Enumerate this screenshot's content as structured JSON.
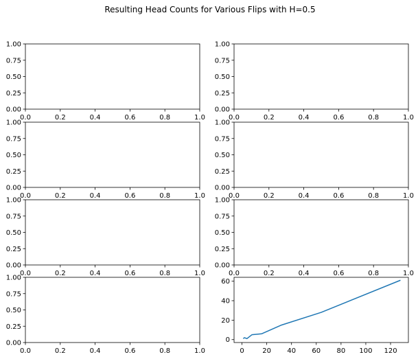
{
  "title": "Resulting Head Counts for Various Flips with H=0.5",
  "line_color": "#1f77b4",
  "chart_data": [
    {
      "type": "line",
      "position": "row1-left",
      "xlim": [
        0,
        1
      ],
      "ylim": [
        0,
        1
      ],
      "xticks": [
        "0.0",
        "0.2",
        "0.4",
        "0.6",
        "0.8",
        "1.0"
      ],
      "yticks": [
        "0.00",
        "0.25",
        "0.50",
        "0.75",
        "1.00"
      ],
      "series": []
    },
    {
      "type": "line",
      "position": "row1-right",
      "xlim": [
        0,
        1
      ],
      "ylim": [
        0,
        1
      ],
      "xticks": [
        "0.0",
        "0.2",
        "0.4",
        "0.6",
        "0.8",
        "1.0"
      ],
      "yticks": [
        "0.00",
        "0.25",
        "0.50",
        "0.75",
        "1.00"
      ],
      "series": []
    },
    {
      "type": "line",
      "position": "row2-left",
      "xlim": [
        0,
        1
      ],
      "ylim": [
        0,
        1
      ],
      "xticks": [
        "0.0",
        "0.2",
        "0.4",
        "0.6",
        "0.8",
        "1.0"
      ],
      "yticks": [
        "0.00",
        "0.25",
        "0.50",
        "0.75",
        "1.00"
      ],
      "series": []
    },
    {
      "type": "line",
      "position": "row2-right",
      "xlim": [
        0,
        1
      ],
      "ylim": [
        0,
        1
      ],
      "xticks": [
        "0.0",
        "0.2",
        "0.4",
        "0.6",
        "0.8",
        "1.0"
      ],
      "yticks": [
        "0.00",
        "0.25",
        "0.50",
        "0.75",
        "1.00"
      ],
      "series": []
    },
    {
      "type": "line",
      "position": "row3-left",
      "xlim": [
        0,
        1
      ],
      "ylim": [
        0,
        1
      ],
      "xticks": [
        "0.0",
        "0.2",
        "0.4",
        "0.6",
        "0.8",
        "1.0"
      ],
      "yticks": [
        "0.00",
        "0.25",
        "0.50",
        "0.75",
        "1.00"
      ],
      "series": []
    },
    {
      "type": "line",
      "position": "row3-right",
      "xlim": [
        0,
        1
      ],
      "ylim": [
        0,
        1
      ],
      "xticks": [
        "0.0",
        "0.2",
        "0.4",
        "0.6",
        "0.8",
        "1.0"
      ],
      "yticks": [
        "0.00",
        "0.25",
        "0.50",
        "0.75",
        "1.00"
      ],
      "series": []
    },
    {
      "type": "line",
      "position": "row4-left",
      "xlim": [
        0,
        1
      ],
      "ylim": [
        0,
        1
      ],
      "xticks": [
        "0.0",
        "0.2",
        "0.4",
        "0.6",
        "0.8",
        "1.0"
      ],
      "yticks": [
        "0.00",
        "0.25",
        "0.50",
        "0.75",
        "1.00"
      ],
      "series": []
    },
    {
      "type": "line",
      "position": "row4-right",
      "xlim": [
        -6.4,
        134.4
      ],
      "ylim": [
        -3,
        64
      ],
      "xticks": [
        "0",
        "20",
        "40",
        "60",
        "80",
        "100",
        "120"
      ],
      "yticks": [
        "0",
        "20",
        "40",
        "60"
      ],
      "series": [
        {
          "x": [
            1,
            2,
            4,
            8,
            16,
            32,
            64,
            128
          ],
          "y": [
            1,
            2,
            1,
            5,
            6,
            15,
            28,
            61
          ]
        }
      ]
    }
  ]
}
